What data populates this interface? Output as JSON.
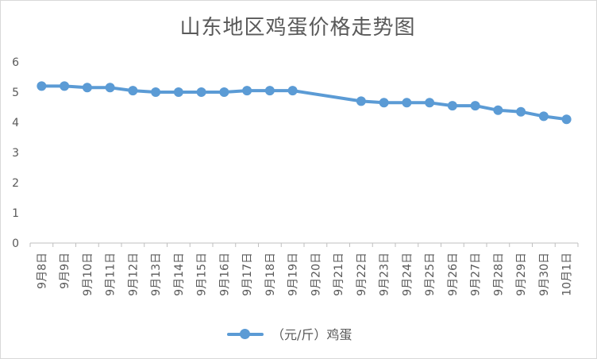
{
  "chart_data": {
    "type": "line",
    "title": "山东地区鸡蛋价格走势图",
    "xlabel": "",
    "ylabel": "",
    "ylim": [
      0,
      6
    ],
    "yticks": [
      "0",
      "1",
      "2",
      "3",
      "4",
      "5",
      "6"
    ],
    "grid": false,
    "legend_position": "bottom",
    "categories": [
      "9月8日",
      "9月9日",
      "9月10日",
      "9月11日",
      "9月12日",
      "9月13日",
      "9月14日",
      "9月15日",
      "9月16日",
      "9月17日",
      "9月18日",
      "9月19日",
      "9月20日",
      "9月21日",
      "9月22日",
      "9月23日",
      "9月24日",
      "9月25日",
      "9月26日",
      "9月27日",
      "9月28日",
      "9月29日",
      "9月30日",
      "10月1日"
    ],
    "series": [
      {
        "name": "（元/斤）鸡蛋",
        "color": "#5b9bd5",
        "values": [
          5.2,
          5.2,
          5.15,
          5.15,
          5.05,
          5.0,
          5.0,
          5.0,
          5.0,
          5.05,
          5.05,
          5.05,
          null,
          null,
          4.7,
          4.65,
          4.65,
          4.65,
          4.55,
          4.55,
          4.4,
          4.35,
          4.2,
          4.1
        ]
      }
    ]
  }
}
